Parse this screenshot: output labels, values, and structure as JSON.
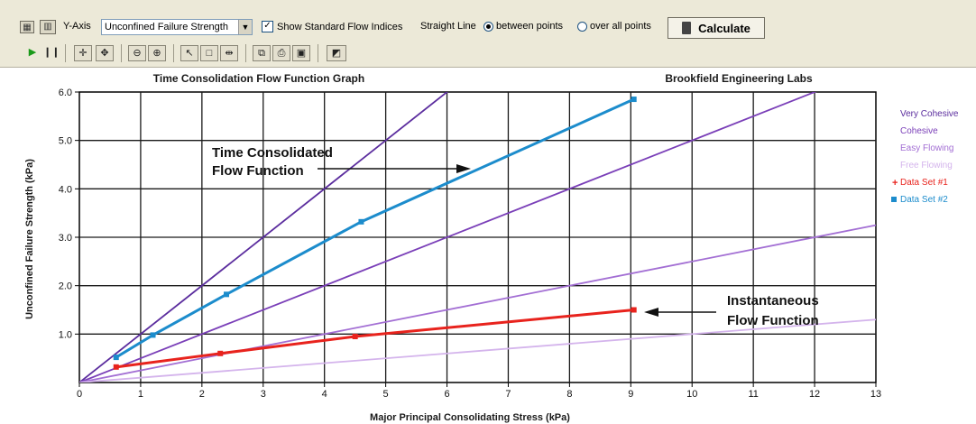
{
  "toolbar": {
    "yaxis_label": "Y-Axis",
    "yaxis_select_value": "Unconfined Failure Strength",
    "show_indices_label": "Show Standard Flow Indices",
    "straight_line_label": "Straight Line",
    "between_points_label": "between points",
    "over_all_points_label": "over all points",
    "calculate_label": "Calculate",
    "show_indices_checked": true,
    "straight_line_mode": "between points"
  },
  "chart_data": {
    "type": "line",
    "title": "Time Consolidation Flow Function Graph",
    "subtitle": "Brookfield Engineering Labs",
    "xlabel": "Major Principal Consolidating Stress (kPa)",
    "ylabel": "Unconfined Failure Strength (kPa)",
    "xlim": [
      0,
      13
    ],
    "ylim": [
      0,
      6.0
    ],
    "x_ticks": [
      "0",
      "1",
      "2",
      "3",
      "4",
      "5",
      "6",
      "7",
      "8",
      "9",
      "10",
      "11",
      "12",
      "13"
    ],
    "y_ticks": [
      "1.0",
      "2.0",
      "3.0",
      "4.0",
      "5.0",
      "6.0"
    ],
    "grid": true,
    "legend_position": "right",
    "reference_lines": [
      {
        "name": "Very Cohesive",
        "slope": 1.0,
        "color": "#5b2d9e"
      },
      {
        "name": "Cohesive",
        "slope": 0.5,
        "color": "#7a3fb8"
      },
      {
        "name": "Easy Flowing",
        "slope": 0.25,
        "color": "#a36fd4"
      },
      {
        "name": "Free Flowing",
        "slope": 0.1,
        "color": "#d4b4ec"
      }
    ],
    "series": [
      {
        "name": "Data Set #1",
        "color": "#e8231d",
        "x": [
          0.6,
          2.3,
          4.5,
          9.05
        ],
        "y": [
          0.32,
          0.6,
          0.95,
          1.5
        ]
      },
      {
        "name": "Data Set #2",
        "color": "#1c8ccc",
        "x": [
          0.6,
          1.2,
          2.4,
          4.6,
          9.05
        ],
        "y": [
          0.52,
          0.98,
          1.82,
          3.32,
          5.85
        ]
      }
    ],
    "annotations": [
      {
        "lines": [
          "Time Consolidated",
          "Flow Function"
        ]
      },
      {
        "lines": [
          "Instantaneous",
          "Flow Function"
        ]
      }
    ]
  }
}
